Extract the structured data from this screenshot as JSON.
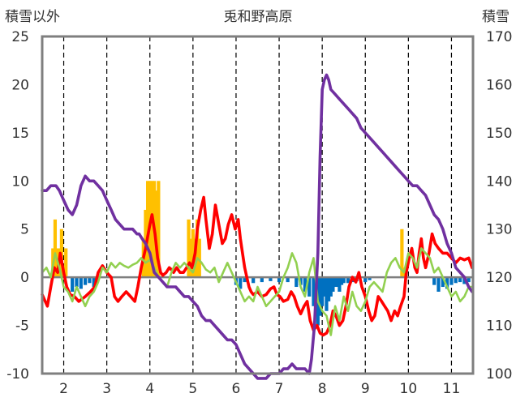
{
  "chart_data": {
    "type": "line",
    "title": "兎和野高原",
    "ylabel_left": "積雪以外",
    "ylabel_right": "積雪",
    "ylim_left": [
      -10,
      25
    ],
    "ylim_right": [
      100,
      170
    ],
    "y_ticks_left": [
      -10,
      -5,
      0,
      5,
      10,
      15,
      20,
      25
    ],
    "y_ticks_right": [
      100,
      110,
      120,
      130,
      140,
      150,
      160,
      170
    ],
    "xlim": [
      1.5,
      11.5
    ],
    "x_ticks": [
      2,
      3,
      4,
      5,
      6,
      7,
      8,
      9,
      10,
      11
    ],
    "grid": "vertical dashed at each x tick",
    "colors": {
      "red": "#ff0000",
      "green": "#92d050",
      "purple": "#7030a0",
      "orange": "#ffc000",
      "blue": "#0070c0",
      "frame": "#7f7f7f"
    },
    "series": [
      {
        "color": "red",
        "axis": "left",
        "x": [
          1.5,
          1.62,
          1.7,
          1.78,
          1.86,
          1.92,
          2.0,
          2.07,
          2.15,
          2.25,
          2.35,
          2.5,
          2.62,
          2.72,
          2.8,
          2.9,
          3.0,
          3.1,
          3.18,
          3.26,
          3.35,
          3.45,
          3.55,
          3.65,
          3.72,
          3.8,
          3.9,
          4.0,
          4.05,
          4.12,
          4.18,
          4.25,
          4.3,
          4.38,
          4.45,
          4.5,
          4.55,
          4.62,
          4.7,
          4.78,
          4.85,
          4.92,
          4.98,
          5.05,
          5.1,
          5.18,
          5.25,
          5.3,
          5.38,
          5.45,
          5.52,
          5.6,
          5.68,
          5.75,
          5.82,
          5.9,
          5.98,
          6.05,
          6.1,
          6.15,
          6.2,
          6.25,
          6.3,
          6.35,
          6.4,
          6.5,
          6.6,
          6.7,
          6.8,
          6.88,
          6.95,
          7.02,
          7.1,
          7.2,
          7.28,
          7.35,
          7.42,
          7.5,
          7.58,
          7.65,
          7.72,
          7.8,
          7.88,
          7.95,
          8.02,
          8.1,
          8.18,
          8.25,
          8.32,
          8.4,
          8.48,
          8.55,
          8.62,
          8.7,
          8.78,
          8.85,
          8.92,
          9.0,
          9.08,
          9.15,
          9.22,
          9.3,
          9.38,
          9.45,
          9.52,
          9.6,
          9.68,
          9.75,
          9.82,
          9.9,
          9.95,
          10.02,
          10.08,
          10.15,
          10.2,
          10.25,
          10.3,
          10.35,
          10.4,
          10.48,
          10.55,
          10.62,
          10.7,
          10.8,
          10.9,
          11.0,
          11.1,
          11.2,
          11.3,
          11.4,
          11.48
        ],
        "values": [
          -1.8,
          -3.0,
          -1.0,
          1.0,
          0.5,
          2.5,
          0.5,
          -1.0,
          -1.8,
          -2.0,
          -2.5,
          -2.0,
          -1.5,
          -1.0,
          0.5,
          1.2,
          0.5,
          0.0,
          -2.0,
          -2.5,
          -2.0,
          -1.5,
          -2.0,
          -2.5,
          -1.0,
          1.0,
          3.0,
          5.5,
          6.5,
          4.5,
          2.0,
          0.5,
          0.2,
          0.5,
          1.0,
          0.8,
          0.5,
          1.0,
          0.5,
          0.5,
          1.0,
          1.5,
          1.0,
          2.5,
          5.0,
          7.0,
          8.3,
          6.0,
          3.0,
          4.5,
          7.5,
          5.5,
          3.5,
          4.0,
          5.5,
          6.5,
          5.0,
          6.0,
          4.0,
          2.5,
          1.0,
          0.0,
          -1.0,
          -1.5,
          -1.8,
          -1.5,
          -2.0,
          -1.8,
          -1.2,
          -1.0,
          -1.8,
          -2.0,
          -2.5,
          -2.3,
          -1.5,
          -2.0,
          -3.0,
          -3.8,
          -3.0,
          -2.5,
          -4.5,
          -5.5,
          -5.0,
          -5.8,
          -6.0,
          -5.8,
          -5.0,
          -3.5,
          -4.0,
          -5.0,
          -4.5,
          -3.0,
          -1.0,
          0.0,
          -0.5,
          0.5,
          -1.0,
          -2.0,
          -3.5,
          -4.5,
          -4.0,
          -2.0,
          -2.5,
          -3.0,
          -3.5,
          -4.5,
          -3.5,
          -4.0,
          -3.0,
          -2.0,
          0.5,
          2.0,
          3.0,
          1.0,
          0.5,
          2.5,
          4.0,
          2.0,
          1.0,
          2.5,
          4.5,
          3.5,
          3.0,
          2.5,
          2.5,
          2.0,
          1.5,
          2.0,
          1.8,
          2.0,
          1.0
        ]
      },
      {
        "color": "green",
        "axis": "left",
        "x": [
          1.5,
          1.6,
          1.7,
          1.8,
          1.9,
          2.0,
          2.1,
          2.2,
          2.3,
          2.4,
          2.5,
          2.6,
          2.7,
          2.8,
          2.9,
          3.0,
          3.1,
          3.2,
          3.3,
          3.4,
          3.5,
          3.6,
          3.7,
          3.8,
          3.9,
          4.0,
          4.1,
          4.2,
          4.3,
          4.4,
          4.5,
          4.6,
          4.7,
          4.8,
          4.9,
          5.0,
          5.1,
          5.2,
          5.3,
          5.4,
          5.5,
          5.6,
          5.7,
          5.8,
          5.9,
          6.0,
          6.1,
          6.2,
          6.3,
          6.4,
          6.5,
          6.6,
          6.7,
          6.8,
          6.9,
          7.0,
          7.1,
          7.2,
          7.3,
          7.4,
          7.5,
          7.6,
          7.7,
          7.8,
          7.9,
          8.0,
          8.1,
          8.2,
          8.3,
          8.4,
          8.5,
          8.6,
          8.7,
          8.8,
          8.9,
          9.0,
          9.1,
          9.2,
          9.3,
          9.4,
          9.5,
          9.6,
          9.7,
          9.8,
          9.9,
          10.0,
          10.1,
          10.2,
          10.3,
          10.4,
          10.5,
          10.6,
          10.7,
          10.8,
          10.9,
          11.0,
          11.1,
          11.2,
          11.3,
          11.4,
          11.48
        ],
        "values": [
          0.5,
          1.0,
          0.0,
          2.5,
          1.0,
          -1.0,
          -1.5,
          -2.5,
          -1.0,
          -2.0,
          -3.0,
          -2.0,
          -1.5,
          -0.5,
          1.0,
          0.5,
          1.5,
          1.0,
          1.5,
          1.2,
          1.0,
          1.3,
          1.5,
          2.0,
          1.5,
          1.8,
          1.0,
          0.0,
          -0.5,
          -1.0,
          0.5,
          1.5,
          1.0,
          1.5,
          1.0,
          0.5,
          2.0,
          1.5,
          0.8,
          0.5,
          1.0,
          -0.5,
          0.5,
          1.5,
          0.5,
          -0.5,
          -1.5,
          -2.5,
          -2.0,
          -2.5,
          -1.0,
          -2.0,
          -3.0,
          -2.5,
          -2.0,
          -1.5,
          0.0,
          1.0,
          2.5,
          1.5,
          -1.0,
          -2.0,
          0.5,
          2.0,
          -2.5,
          -3.5,
          -4.0,
          -6.0,
          -3.0,
          -4.5,
          -2.0,
          -3.5,
          -1.5,
          -3.0,
          -3.5,
          -2.5,
          -1.0,
          -0.5,
          -1.0,
          -1.5,
          0.5,
          1.5,
          2.0,
          1.0,
          0.5,
          2.5,
          2.0,
          1.0,
          3.0,
          2.5,
          2.0,
          0.5,
          1.0,
          0.0,
          -1.0,
          -2.0,
          -1.5,
          -2.5,
          -2.0,
          -1.0,
          -1.0
        ]
      },
      {
        "color": "purple",
        "axis": "right",
        "x": [
          1.5,
          1.6,
          1.7,
          1.75,
          1.82,
          1.9,
          2.0,
          2.1,
          2.2,
          2.3,
          2.4,
          2.45,
          2.5,
          2.6,
          2.7,
          2.8,
          2.9,
          3.0,
          3.1,
          3.2,
          3.3,
          3.4,
          3.5,
          3.6,
          3.7,
          3.75,
          3.82,
          3.9,
          4.0,
          4.1,
          4.2,
          4.3,
          4.4,
          4.5,
          4.6,
          4.7,
          4.8,
          4.9,
          5.0,
          5.1,
          5.2,
          5.3,
          5.4,
          5.5,
          5.6,
          5.7,
          5.8,
          5.9,
          6.0,
          6.1,
          6.2,
          6.3,
          6.4,
          6.5,
          6.6,
          6.7,
          6.8,
          6.9,
          7.0,
          7.1,
          7.2,
          7.3,
          7.4,
          7.5,
          7.6,
          7.7,
          7.75,
          7.82,
          7.9,
          7.95,
          8.0,
          8.05,
          8.1,
          8.15,
          8.2,
          8.3,
          8.4,
          8.5,
          8.6,
          8.7,
          8.8,
          8.9,
          9.0,
          9.1,
          9.2,
          9.3,
          9.4,
          9.5,
          9.6,
          9.7,
          9.8,
          9.9,
          10.0,
          10.1,
          10.2,
          10.3,
          10.4,
          10.5,
          10.6,
          10.7,
          10.8,
          10.9,
          11.0,
          11.1,
          11.2,
          11.3,
          11.4,
          11.48
        ],
        "values": [
          138,
          138,
          139,
          139,
          139,
          138,
          136,
          134,
          133,
          135,
          139,
          140,
          141,
          140,
          140,
          139,
          138,
          136,
          134,
          132,
          131,
          130,
          130,
          130,
          129,
          129,
          128,
          127,
          125,
          121,
          120,
          119,
          118,
          118,
          118,
          117,
          116,
          116,
          115,
          114,
          112,
          111,
          111,
          110,
          109,
          108,
          107,
          107,
          106,
          104,
          102,
          101,
          100,
          99,
          99,
          99,
          100,
          100,
          100,
          101,
          101,
          102,
          101,
          101,
          101,
          100,
          103,
          110,
          125,
          145,
          159,
          161,
          162,
          161,
          159,
          158,
          157,
          156,
          155,
          154,
          153,
          151,
          150,
          149,
          148,
          147,
          146,
          145,
          144,
          143,
          142,
          141,
          140,
          139,
          139,
          138,
          137,
          135,
          133,
          132,
          130,
          127,
          125,
          122,
          121,
          120,
          118,
          117
        ]
      }
    ],
    "bars": [
      {
        "color": "orange",
        "axis": "left",
        "x": [
          1.75,
          1.8,
          1.85,
          1.9,
          1.95,
          2.05,
          3.85,
          3.9,
          3.95,
          4.0,
          4.05,
          4.1,
          4.15,
          4.2,
          4.9,
          4.95,
          5.0,
          5.05,
          5.1,
          5.15,
          9.85,
          9.9
        ],
        "values": [
          3,
          6,
          3,
          3,
          5,
          3,
          4,
          7,
          10,
          10,
          10,
          10,
          9,
          10,
          6,
          4,
          5,
          4,
          6,
          4,
          5,
          1
        ]
      },
      {
        "color": "blue",
        "axis": "left",
        "x": [
          2.2,
          2.3,
          2.4,
          2.5,
          2.6,
          2.7,
          6.0,
          6.1,
          6.2,
          6.4,
          6.6,
          6.8,
          7.0,
          7.2,
          7.4,
          7.5,
          7.6,
          7.7,
          7.8,
          7.85,
          7.9,
          7.95,
          8.0,
          8.05,
          8.1,
          8.15,
          8.2,
          8.25,
          8.3,
          8.35,
          8.4,
          8.45,
          8.5,
          8.6,
          8.7,
          8.8,
          9.0,
          9.1,
          10.6,
          10.7,
          10.8,
          10.9,
          11.0,
          11.1,
          11.2,
          11.3,
          11.4
        ],
        "values": [
          -1.5,
          -1.0,
          -1.2,
          -0.8,
          -0.6,
          -1.0,
          -0.8,
          -1.2,
          -0.5,
          -0.6,
          -0.5,
          -0.4,
          -0.5,
          -0.5,
          -1.0,
          -0.8,
          -1.5,
          -2.0,
          -3.0,
          -4.0,
          -5.0,
          -4.0,
          -3.0,
          -2.0,
          -3.5,
          -2.5,
          -2.0,
          -1.5,
          -1.0,
          -1.0,
          -1.5,
          -0.8,
          -0.6,
          -0.6,
          -0.5,
          -0.4,
          -0.5,
          -0.3,
          -0.8,
          -1.5,
          -1.0,
          -1.2,
          -0.8,
          -0.6,
          -0.5,
          -0.7,
          -0.5
        ]
      }
    ]
  }
}
